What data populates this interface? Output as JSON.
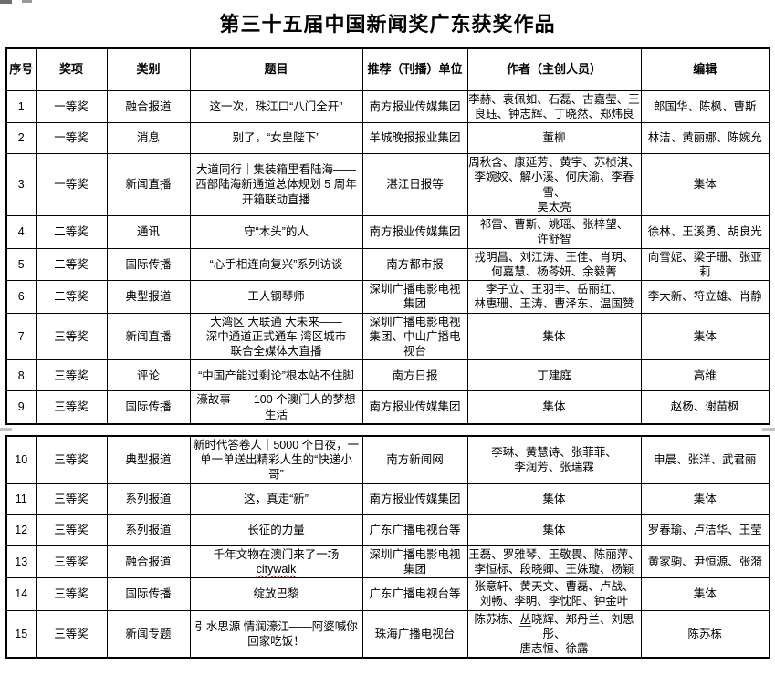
{
  "page_title": "第三十五届中国新闻奖广东获奖作品",
  "table": {
    "columns": [
      {
        "key": "no",
        "label": "序号"
      },
      {
        "key": "award",
        "label": "奖项"
      },
      {
        "key": "category",
        "label": "类别"
      },
      {
        "key": "title",
        "label": "题目"
      },
      {
        "key": "unit",
        "label": "推荐（刊播）单位"
      },
      {
        "key": "authors",
        "label": "作者（主创人员）"
      },
      {
        "key": "editors",
        "label": "编辑"
      }
    ],
    "sections": [
      {
        "rows": [
          {
            "no": "1",
            "award": "一等奖",
            "category": "融合报道",
            "title": "这一次，珠江口“八门全开”",
            "unit": "南方报业传媒集团",
            "authors": "李赫、袁佩如、石磊、古嘉莹、王\n良珏、钟志辉、丁晓然、郑炜良",
            "editors": "郎国华、陈枫、曹斯"
          },
          {
            "no": "2",
            "award": "一等奖",
            "category": "消息",
            "title": "别了，“女皇陛下”",
            "unit": "羊城晚报报业集团",
            "authors": "董柳",
            "editors": "林洁、黄丽娜、陈婉允"
          },
          {
            "no": "3",
            "award": "一等奖",
            "category": "新闻直播",
            "title": "大道同行｜集装箱里看陆海——\n西部陆海新通道总体规划 5 周年\n开箱联动直播",
            "unit": "湛江日报等",
            "authors": "周秋含、康延芳、黄宇、苏桢淇、\n李婉姣、解小溪、何庆渝、李春雪、\n吴太亮",
            "editors": "集体"
          },
          {
            "no": "4",
            "award": "二等奖",
            "category": "通讯",
            "title": "守“木头”的人",
            "unit": "南方报业传媒集团",
            "authors": "祁雷、曹斯、姚瑶、张梓望、\n许舒智",
            "editors": "徐林、王溪勇、胡良光"
          },
          {
            "no": "5",
            "award": "二等奖",
            "category": "国际传播",
            "title": "“心手相连向复兴”系列访谈",
            "unit": "南方都市报",
            "authors": "戎明昌、刘江涛、王佳、肖玥、\n何嘉慧、杨苓妍、余毅菁",
            "editors": "向雪妮、梁子珊、张亚莉"
          },
          {
            "no": "6",
            "award": "二等奖",
            "category": "典型报道",
            "title": "工人钢琴师",
            "unit": "深圳广播电影电视\n集团",
            "authors": "李子立、王羽丰、岳丽红、\n林惠珊、王涛、曹泽东、温国赞",
            "editors": "李大新、符立雄、肖静"
          },
          {
            "no": "7",
            "award": "三等奖",
            "category": "新闻直播",
            "title": "大湾区 大联通 大未来——\n深中通道正式通车 湾区城市\n联合全媒体大直播",
            "unit": "深圳广播电影电视\n集团、中山广播电\n视台",
            "authors": "集体",
            "editors": "集体"
          },
          {
            "no": "8",
            "award": "三等奖",
            "category": "评论",
            "title": "“中国产能过剩论”根本站不住脚",
            "unit": "南方日报",
            "authors": "丁建庭",
            "editors": "高维"
          },
          {
            "no": "9",
            "award": "三等奖",
            "category": "国际传播",
            "title": "濠故事——100 个澳门人的梦想\n生活",
            "unit": "南方报业传媒集团",
            "authors": "集体",
            "editors": "赵杨、谢苗枫"
          }
        ]
      },
      {
        "rows": [
          {
            "no": "10",
            "award": "三等奖",
            "category": "典型报道",
            "title": [
              {
                "text": "新时代答卷人｜"
              },
              {
                "text": "5000",
                "mark": "underline"
              },
              {
                "text": " 个日夜，一\n单一单送出精彩人生的“快递小\n哥”"
              }
            ],
            "unit": "南方新闻网",
            "authors": "李琳、黄慧诗、张菲菲、\n李润芳、张瑞霖",
            "editors": "申晨、张洋、武君丽"
          },
          {
            "no": "11",
            "award": "三等奖",
            "category": "系列报道",
            "title": "这，真走“新”",
            "unit": "南方报业传媒集团",
            "authors": "集体",
            "editors": "集体"
          },
          {
            "no": "12",
            "award": "三等奖",
            "category": "系列报道",
            "title": "长征的力量",
            "unit": "广东广播电视台等",
            "authors": "集体",
            "editors": "罗春瑜、卢洁华、王莹"
          },
          {
            "no": "13",
            "award": "三等奖",
            "category": "融合报道",
            "title": [
              {
                "text": "千年文物在澳门来了一场\n"
              },
              {
                "text": "citywalk",
                "mark": "spell"
              }
            ],
            "unit": "深圳广播电影电视\n集团",
            "authors": "王磊、罗雅琴、王敬畏、陈丽萍、\n李恒标、段晓卿、王姝璇、杨颖",
            "editors": "黄家驹、尹恒源、张漪"
          },
          {
            "no": "14",
            "award": "三等奖",
            "category": "国际传播",
            "title": "绽放巴黎",
            "unit": "广东广播电视台等",
            "authors": "张意轩、黄天文、曹磊、卢战、\n刘畅、李明、李忱阳、钟金叶",
            "editors": "集体"
          },
          {
            "no": "15",
            "award": "三等奖",
            "category": "新闻专题",
            "title": "引水思源 情润濠江——阿婆喊你\n回家吃饭！",
            "unit": "珠海广播电视台",
            "authors": [
              {
                "text": "陈苏栋、"
              },
              {
                "text": "丛",
                "mark": "underline"
              },
              {
                "text": "晓辉、郑丹兰、刘思彤、\n唐志恒、徐露"
              }
            ],
            "editors": "陈苏栋"
          }
        ]
      }
    ]
  }
}
